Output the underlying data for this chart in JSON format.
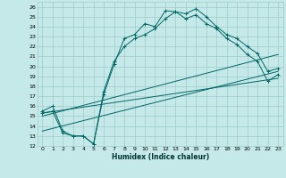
{
  "xlabel": "Humidex (Indice chaleur)",
  "xlim": [
    -0.5,
    23.5
  ],
  "ylim": [
    12,
    26.5
  ],
  "yticks": [
    12,
    13,
    14,
    15,
    16,
    17,
    18,
    19,
    20,
    21,
    22,
    23,
    24,
    25,
    26
  ],
  "xticks": [
    0,
    1,
    2,
    3,
    4,
    5,
    6,
    7,
    8,
    9,
    10,
    11,
    12,
    13,
    14,
    15,
    16,
    17,
    18,
    19,
    20,
    21,
    22,
    23
  ],
  "bg_color": "#c5e8e8",
  "grid_color": "#a0cbcb",
  "line_color": "#006666",
  "main_line": [
    15.5,
    16.0,
    13.5,
    13.0,
    13.0,
    12.2,
    17.2,
    20.2,
    22.8,
    23.2,
    24.3,
    24.0,
    25.6,
    25.5,
    24.8,
    25.2,
    24.3,
    23.8,
    22.8,
    22.2,
    21.2,
    20.5,
    18.5,
    19.2
  ],
  "line2": [
    15.3,
    15.5,
    13.3,
    13.0,
    13.0,
    12.2,
    17.5,
    20.5,
    22.0,
    22.8,
    23.2,
    23.8,
    24.8,
    25.5,
    25.3,
    25.8,
    25.0,
    24.0,
    23.2,
    22.8,
    22.0,
    21.3,
    19.5,
    19.8
  ],
  "reg_line1_x": [
    0,
    23
  ],
  "reg_line1_y": [
    15.0,
    21.2
  ],
  "reg_line2_x": [
    0,
    23
  ],
  "reg_line2_y": [
    13.5,
    19.5
  ],
  "reg_line3_x": [
    0,
    23
  ],
  "reg_line3_y": [
    15.3,
    18.8
  ]
}
